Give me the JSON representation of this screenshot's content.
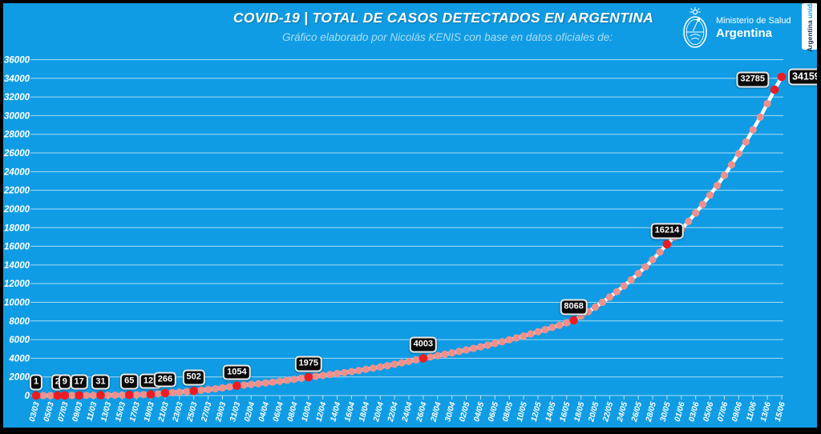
{
  "header": {
    "title": "COVID-19  |  TOTAL DE CASOS DETECTADOS EN ARGENTINA",
    "subtitle": "Gráfico elaborado por Nicolás KENIS con base en datos oficiales de:",
    "logo": {
      "line1": "Ministerio de Salud",
      "line2": "Argentina"
    },
    "banner": {
      "word1": "Argentina",
      "word2": "unida"
    }
  },
  "chart_data": {
    "type": "line",
    "title": "COVID-19 | TOTAL DE CASOS DETECTADOS EN ARGENTINA",
    "xlabel": "",
    "ylabel": "",
    "ylim": [
      0,
      36000
    ],
    "y_tick_step": 2000,
    "grid": true,
    "legend": false,
    "x_start": "03/03",
    "x_end": "15/06",
    "n_days": 105,
    "interpolation": "geometric",
    "x_tick_labels": [
      "03/03",
      "05/03",
      "07/03",
      "09/03",
      "11/03",
      "13/03",
      "15/03",
      "17/03",
      "19/03",
      "21/03",
      "23/03",
      "25/03",
      "27/03",
      "29/03",
      "31/03",
      "02/04",
      "04/04",
      "06/04",
      "08/04",
      "10/04",
      "12/04",
      "14/04",
      "16/04",
      "18/04",
      "20/04",
      "22/04",
      "24/04",
      "26/04",
      "28/04",
      "30/04",
      "02/05",
      "04/05",
      "06/05",
      "08/05",
      "10/05",
      "12/05",
      "14/05",
      "16/05",
      "18/05",
      "20/05",
      "22/05",
      "24/05",
      "26/05",
      "28/05",
      "30/05",
      "01/06",
      "03/06",
      "05/06",
      "07/06",
      "09/06",
      "11/06",
      "13/06",
      "15/06"
    ],
    "labeled_points": [
      {
        "date": "03/03",
        "day": 0,
        "value": 1,
        "label_side": "above"
      },
      {
        "date": "06/03",
        "day": 3,
        "value": 2,
        "label_side": "above"
      },
      {
        "date": "07/03",
        "day": 4,
        "value": 9,
        "label_side": "above"
      },
      {
        "date": "09/03",
        "day": 6,
        "value": 17,
        "label_side": "above"
      },
      {
        "date": "12/03",
        "day": 9,
        "value": 31,
        "label_side": "above"
      },
      {
        "date": "16/03",
        "day": 13,
        "value": 65,
        "label_side": "above"
      },
      {
        "date": "19/03",
        "day": 16,
        "value": 128,
        "label_side": "above"
      },
      {
        "date": "21/03",
        "day": 18,
        "value": 266,
        "label_side": "above"
      },
      {
        "date": "25/03",
        "day": 22,
        "value": 502,
        "label_side": "above"
      },
      {
        "date": "31/03",
        "day": 28,
        "value": 1054,
        "label_side": "above"
      },
      {
        "date": "10/04",
        "day": 38,
        "value": 1975,
        "label_side": "above"
      },
      {
        "date": "26/04",
        "day": 54,
        "value": 4003,
        "label_side": "above"
      },
      {
        "date": "17/05",
        "day": 75,
        "value": 8068,
        "label_side": "above"
      },
      {
        "date": "30/05",
        "day": 88,
        "value": 16214,
        "label_side": "above"
      },
      {
        "date": "14/06",
        "day": 103,
        "value": 32785,
        "label_side": "left"
      },
      {
        "date": "15/06",
        "day": 104,
        "value": 34159,
        "label_side": "right"
      }
    ],
    "colors": {
      "background": "#0f9ce4",
      "grid": "#d2eaf8",
      "axis_text": "#ffffff",
      "point": "#f0908d",
      "point_highlight": "#ec1c24",
      "line": "#ffffff",
      "label_bg": "#0a0a0a",
      "label_border": "#e9e9e9",
      "label_text": "#ffffff"
    }
  }
}
